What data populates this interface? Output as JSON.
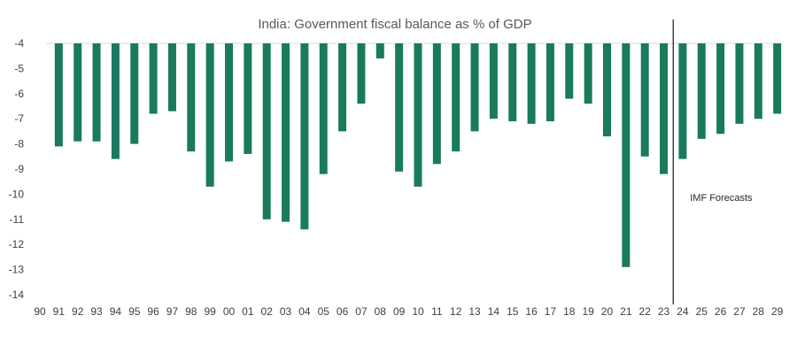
{
  "chart_data": {
    "type": "bar",
    "title": "India: Government fiscal balance as % of GDP",
    "xlabel": "",
    "ylabel": "",
    "ylim": [
      -14,
      -4
    ],
    "yticks": [
      "-4",
      "-5",
      "-6",
      "-7",
      "-8",
      "-9",
      "-10",
      "-11",
      "-12",
      "-13",
      "-14"
    ],
    "grid": false,
    "legend": "none",
    "bar_color": "#1a7a5e",
    "categories": [
      "90",
      "91",
      "92",
      "93",
      "94",
      "95",
      "96",
      "97",
      "98",
      "99",
      "00",
      "01",
      "02",
      "03",
      "04",
      "05",
      "06",
      "07",
      "08",
      "09",
      "10",
      "11",
      "12",
      "13",
      "14",
      "15",
      "16",
      "17",
      "18",
      "19",
      "20",
      "21",
      "22",
      "23",
      "24",
      "25",
      "26",
      "27",
      "28",
      "29"
    ],
    "values": [
      null,
      -8.1,
      -7.9,
      -7.9,
      -8.6,
      -8.0,
      -6.8,
      -6.7,
      -8.3,
      -9.7,
      -8.7,
      -8.4,
      -11.0,
      -11.1,
      -11.4,
      -9.2,
      -7.5,
      -6.4,
      -4.6,
      -9.1,
      -9.7,
      -8.8,
      -8.3,
      -7.5,
      -7.0,
      -7.1,
      -7.2,
      -7.1,
      -6.2,
      -6.4,
      -7.7,
      -12.9,
      -8.5,
      -9.2,
      -8.6,
      -7.8,
      -7.6,
      -7.2,
      -7.0,
      -6.8
    ],
    "annotations": [
      {
        "text": "IMF Forecasts",
        "divider_between": [
          "23",
          "24"
        ]
      }
    ]
  }
}
